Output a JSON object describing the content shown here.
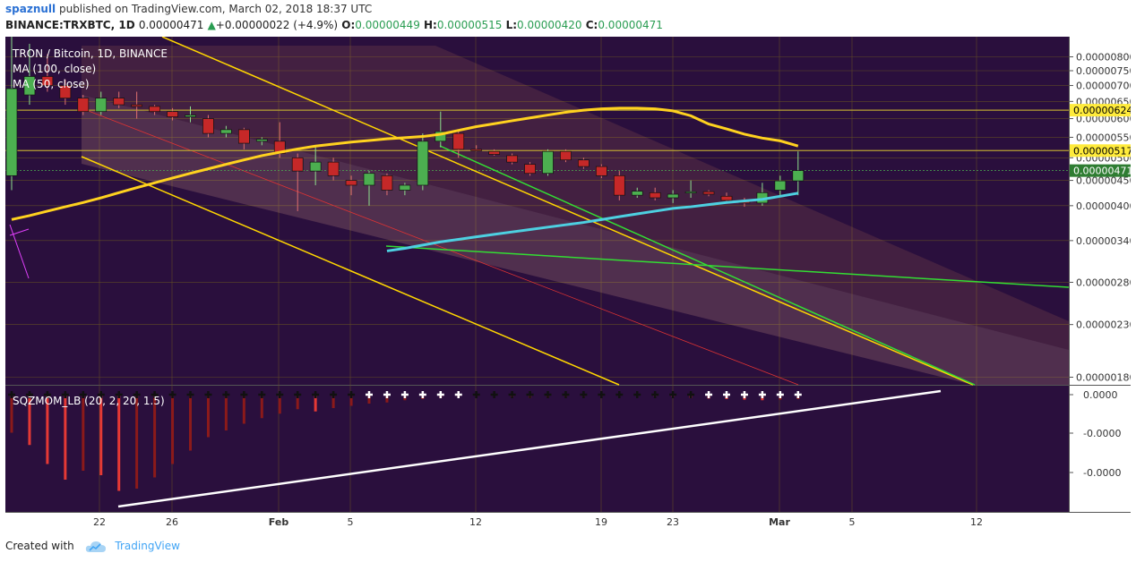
{
  "header": {
    "user": "spaznull",
    "published": "published on TradingView.com, March 02, 2018 18:37 UTC",
    "symbol": "BINANCE:TRXBTC, 1D",
    "price": "0.00000471",
    "change_arrow": "▲",
    "change": "+0.00000022 (+4.9%)",
    "o_label": "O:",
    "o": "0.00000449",
    "h_label": "H:",
    "h": "0.00000515",
    "l_label": "L:",
    "l": "0.00000420",
    "c_label": "C:",
    "c": "0.00000471"
  },
  "legend": {
    "title": "TRON / Bitcoin, 1D, BINANCE",
    "ma100": "MA (100, close)",
    "ma50": "MA (50, close)",
    "indicator": "SQZMOM_LB (20, 2, 20, 1.5)"
  },
  "footer": {
    "created": "Created with",
    "brand": "TradingView"
  },
  "colors": {
    "background": "#2a0f3d",
    "grid": "#5f4a27",
    "bull": "#4caf50",
    "bear": "#c62828",
    "ma100": "#ffd21f",
    "ma50": "#4dd0e1",
    "trendline_yellow": "#ffd600",
    "trendline_green": "#33dd33",
    "level_line": "#b8a233",
    "momentum_white": "#ffffff"
  },
  "chart_data": {
    "type": "candlestick",
    "x_axis_ticks": [
      "22",
      "26",
      "Feb",
      "5",
      "12",
      "19",
      "23",
      "Mar",
      "5",
      "12"
    ],
    "y_axis_ticks": [
      8e-06,
      7.5e-06,
      7e-06,
      6.5e-06,
      6e-06,
      5.5e-06,
      5e-06,
      4.5e-06,
      4e-06,
      3.4e-06,
      2.8e-06,
      2.3e-06,
      1.8e-06
    ],
    "y_axis_labels": [
      "0.00000800",
      "0.00000750",
      "0.00000700",
      "0.00000650",
      "0.00000600",
      "0.00000550",
      "0.00000500",
      "0.00000450",
      "0.00000400",
      "0.00000340",
      "0.00000280",
      "0.00000230",
      "0.00000180"
    ],
    "scale": "log",
    "price_labels": [
      {
        "value": "0.00000624",
        "bg": "#ffeb3b",
        "fg": "#000000"
      },
      {
        "value": "0.00000517",
        "bg": "#ffeb3b",
        "fg": "#000000"
      },
      {
        "value": "0.00000471",
        "bg": "#2e7d32",
        "fg": "#ffffff"
      }
    ],
    "levels": [
      6.24e-06,
      5.17e-06
    ],
    "candles": [
      {
        "o": 4.6,
        "h": 9.0,
        "l": 4.3,
        "c": 6.9
      },
      {
        "o": 6.7,
        "h": 8.5,
        "l": 6.4,
        "c": 7.3
      },
      {
        "o": 7.3,
        "h": 8.1,
        "l": 6.8,
        "c": 7.0
      },
      {
        "o": 7.0,
        "h": 7.2,
        "l": 6.4,
        "c": 6.6
      },
      {
        "o": 6.6,
        "h": 6.7,
        "l": 6.1,
        "c": 6.2
      },
      {
        "o": 6.2,
        "h": 6.8,
        "l": 6.1,
        "c": 6.6
      },
      {
        "o": 6.6,
        "h": 6.8,
        "l": 6.3,
        "c": 6.4
      },
      {
        "o": 6.4,
        "h": 6.8,
        "l": 6.0,
        "c": 6.35
      },
      {
        "o": 6.35,
        "h": 6.4,
        "l": 6.1,
        "c": 6.2
      },
      {
        "o": 6.2,
        "h": 6.3,
        "l": 5.95,
        "c": 6.05
      },
      {
        "o": 6.05,
        "h": 6.35,
        "l": 5.9,
        "c": 6.1
      },
      {
        "o": 6.0,
        "h": 6.1,
        "l": 5.5,
        "c": 5.6
      },
      {
        "o": 5.6,
        "h": 5.8,
        "l": 5.5,
        "c": 5.7
      },
      {
        "o": 5.7,
        "h": 5.75,
        "l": 5.2,
        "c": 5.35
      },
      {
        "o": 5.4,
        "h": 5.5,
        "l": 5.3,
        "c": 5.45
      },
      {
        "o": 5.4,
        "h": 5.9,
        "l": 5.0,
        "c": 5.1
      },
      {
        "o": 5.0,
        "h": 5.1,
        "l": 3.9,
        "c": 4.7
      },
      {
        "o": 4.7,
        "h": 5.3,
        "l": 4.4,
        "c": 4.9
      },
      {
        "o": 4.9,
        "h": 5.0,
        "l": 4.5,
        "c": 4.6
      },
      {
        "o": 4.5,
        "h": 4.6,
        "l": 4.2,
        "c": 4.4
      },
      {
        "o": 4.4,
        "h": 4.7,
        "l": 4.0,
        "c": 4.65
      },
      {
        "o": 4.6,
        "h": 4.65,
        "l": 4.2,
        "c": 4.3
      },
      {
        "o": 4.3,
        "h": 4.45,
        "l": 4.2,
        "c": 4.4
      },
      {
        "o": 4.4,
        "h": 5.6,
        "l": 4.3,
        "c": 5.4
      },
      {
        "o": 5.4,
        "h": 6.2,
        "l": 5.25,
        "c": 5.65
      },
      {
        "o": 5.6,
        "h": 5.65,
        "l": 5.0,
        "c": 5.2
      },
      {
        "o": 5.2,
        "h": 5.3,
        "l": 5.15,
        "c": 5.18
      },
      {
        "o": 5.15,
        "h": 5.2,
        "l": 5.05,
        "c": 5.08
      },
      {
        "o": 5.05,
        "h": 5.1,
        "l": 4.85,
        "c": 4.9
      },
      {
        "o": 4.85,
        "h": 4.9,
        "l": 4.6,
        "c": 4.65
      },
      {
        "o": 4.65,
        "h": 5.2,
        "l": 4.6,
        "c": 5.15
      },
      {
        "o": 5.15,
        "h": 5.2,
        "l": 4.9,
        "c": 4.95
      },
      {
        "o": 4.95,
        "h": 5.0,
        "l": 4.75,
        "c": 4.8
      },
      {
        "o": 4.8,
        "h": 4.85,
        "l": 4.55,
        "c": 4.6
      },
      {
        "o": 4.6,
        "h": 4.7,
        "l": 4.1,
        "c": 4.2
      },
      {
        "o": 4.2,
        "h": 4.35,
        "l": 4.15,
        "c": 4.28
      },
      {
        "o": 4.25,
        "h": 4.35,
        "l": 4.1,
        "c": 4.15
      },
      {
        "o": 4.15,
        "h": 4.3,
        "l": 4.05,
        "c": 4.22
      },
      {
        "o": 4.25,
        "h": 4.5,
        "l": 4.15,
        "c": 4.27
      },
      {
        "o": 4.27,
        "h": 4.3,
        "l": 4.18,
        "c": 4.22
      },
      {
        "o": 4.18,
        "h": 4.25,
        "l": 4.05,
        "c": 4.1
      },
      {
        "o": 4.08,
        "h": 4.15,
        "l": 3.98,
        "c": 4.05
      },
      {
        "o": 4.05,
        "h": 4.45,
        "l": 4.0,
        "c": 4.25
      },
      {
        "o": 4.3,
        "h": 4.6,
        "l": 4.2,
        "c": 4.49
      },
      {
        "o": 4.49,
        "h": 5.15,
        "l": 4.2,
        "c": 4.71
      }
    ],
    "ma100": [
      3.75,
      3.82,
      3.9,
      3.98,
      4.06,
      4.15,
      4.25,
      4.35,
      4.45,
      4.55,
      4.65,
      4.75,
      4.85,
      4.95,
      5.05,
      5.13,
      5.21,
      5.28,
      5.33,
      5.38,
      5.42,
      5.46,
      5.49,
      5.52,
      5.58,
      5.68,
      5.78,
      5.86,
      5.94,
      6.02,
      6.1,
      6.18,
      6.24,
      6.28,
      6.3,
      6.3,
      6.28,
      6.22,
      6.08,
      5.85,
      5.72,
      5.58,
      5.48,
      5.41,
      5.28
    ],
    "ma50_start_index": 21,
    "ma50": [
      3.24,
      3.28,
      3.33,
      3.38,
      3.42,
      3.46,
      3.5,
      3.54,
      3.58,
      3.62,
      3.66,
      3.7,
      3.75,
      3.8,
      3.85,
      3.9,
      3.95,
      3.98,
      4.02,
      4.06,
      4.09,
      4.12,
      4.18,
      4.24
    ],
    "momentum": {
      "name": "SQZMOM_LB (20, 2, 20, 1.5)",
      "ticks": [
        "0.0000",
        "-0.0000",
        "-0.0000"
      ],
      "values": [
        -0.34,
        -0.45,
        -0.62,
        -0.76,
        -0.68,
        -0.72,
        -0.86,
        -0.84,
        -0.74,
        -0.62,
        -0.5,
        -0.38,
        -0.32,
        -0.26,
        -0.21,
        -0.17,
        -0.13,
        -0.15,
        -0.12,
        -0.1,
        -0.08,
        -0.07,
        -0.05,
        -0.04,
        -0.03,
        -0.02,
        -0.015,
        -0.01,
        -0.02,
        -0.03,
        -0.025,
        -0.02,
        -0.018,
        -0.015,
        -0.012,
        -0.01,
        -0.015,
        -0.02,
        -0.03,
        -0.035,
        -0.04,
        -0.045,
        -0.05,
        -0.045,
        -0.04
      ],
      "squeeze": [
        "b",
        "b",
        "b",
        "b",
        "b",
        "b",
        "b",
        "b",
        "b",
        "b",
        "b",
        "b",
        "b",
        "b",
        "b",
        "b",
        "b",
        "b",
        "b",
        "b",
        "w",
        "w",
        "w",
        "w",
        "w",
        "w",
        "b",
        "b",
        "b",
        "b",
        "b",
        "b",
        "b",
        "b",
        "b",
        "b",
        "b",
        "b",
        "b",
        "w",
        "w",
        "w",
        "w",
        "w",
        "w"
      ]
    }
  }
}
